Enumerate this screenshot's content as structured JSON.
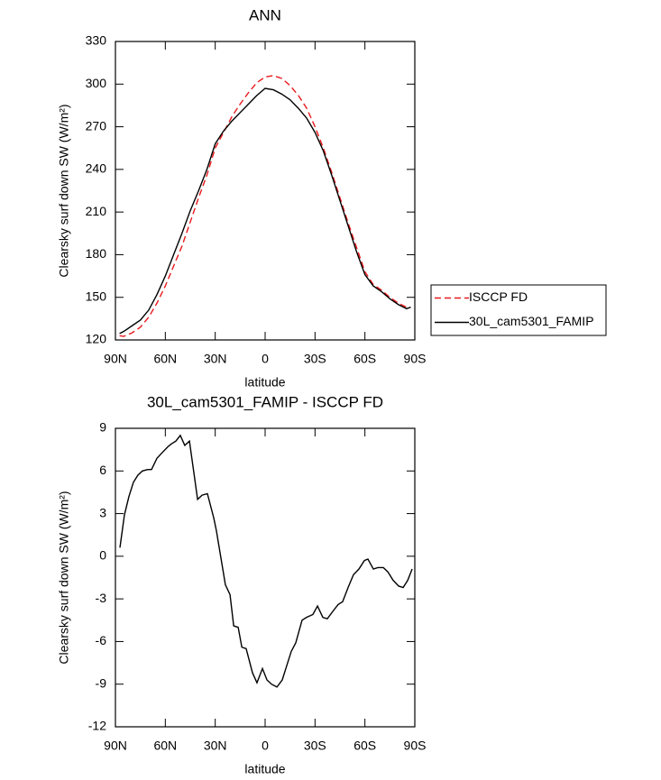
{
  "chart_data": [
    {
      "type": "line",
      "title": "ANN",
      "xlabel": "latitude",
      "ylabel": "Clearsky surf down SW (W/m²)",
      "x": [
        87.5,
        85,
        80,
        75,
        70,
        65,
        60,
        55,
        50,
        45,
        40,
        35,
        30,
        25,
        20,
        15,
        10,
        5,
        0,
        -5,
        -10,
        -15,
        -20,
        -25,
        -30,
        -35,
        -40,
        -45,
        -50,
        -55,
        -60,
        -65,
        -70,
        -75,
        -80,
        -85,
        -87.5
      ],
      "series": [
        {
          "name": "ISCCP FD",
          "color": "#e8191c",
          "dash": true,
          "values": [
            123,
            122.5,
            125,
            129,
            136,
            146,
            158,
            172,
            186,
            203,
            220,
            236,
            255,
            266,
            277,
            286,
            294,
            301,
            305,
            306,
            304,
            299,
            292,
            283,
            270,
            255,
            238,
            220,
            202,
            185,
            168,
            159,
            155,
            150,
            146,
            143,
            143
          ]
        },
        {
          "name": "30L_cam5301_FAMIP",
          "color": "#000000",
          "dash": false,
          "values": [
            124.5,
            126,
            130,
            134,
            141,
            152,
            165,
            180,
            195,
            211,
            225,
            240,
            258,
            267,
            274,
            280,
            286,
            292,
            297,
            296,
            293,
            289,
            283,
            276,
            266,
            253,
            236,
            218,
            200,
            182,
            166,
            158,
            154,
            149,
            145,
            142,
            143
          ]
        }
      ],
      "xlim": [
        90,
        -90
      ],
      "xticks": [
        {
          "value": 90,
          "label": "90N"
        },
        {
          "value": 60,
          "label": "60N"
        },
        {
          "value": 30,
          "label": "30N"
        },
        0,
        {
          "value": -30,
          "label": "30S"
        },
        {
          "value": -60,
          "label": "60S"
        },
        {
          "value": -90,
          "label": "90S"
        }
      ],
      "ylim": [
        120,
        330
      ],
      "yticks": [
        120,
        150,
        180,
        210,
        240,
        270,
        300,
        330
      ],
      "legend": "outside right"
    },
    {
      "type": "line",
      "title": "30L_cam5301_FAMIP - ISCCP FD",
      "xlabel": "latitude",
      "ylabel": "Clearsky surf down SW (W/m²)",
      "x": [
        87.3,
        84.6,
        81.9,
        79.2,
        76.5,
        73.8,
        70.6,
        68.3,
        65,
        61.8,
        58.5,
        56.4,
        53.7,
        51,
        48.3,
        45.5,
        40.6,
        37.9,
        34.7,
        30.9,
        29.3,
        23.9,
        21.1,
        18.9,
        16.2,
        14,
        11.4,
        7.6,
        4.9,
        1.6,
        -1.1,
        -3.8,
        -7.1,
        -10.3,
        -13,
        -15.7,
        -18.4,
        -22.2,
        -24.9,
        -28.7,
        -31.5,
        -34.7,
        -37.4,
        -41.2,
        -43.9,
        -46.6,
        -49.9,
        -53.1,
        -56.4,
        -59.7,
        -61.8,
        -65.1,
        -67.8,
        -71.1,
        -73.8,
        -77,
        -80.3,
        -83,
        -85.7,
        -88.4
      ],
      "values": [
        0.6,
        2.9,
        4.2,
        5.2,
        5.7,
        6,
        6.1,
        6.1,
        6.9,
        7.3,
        7.7,
        7.9,
        8.1,
        8.5,
        7.8,
        8.1,
        4,
        4.3,
        4.4,
        2.7,
        1.8,
        -2,
        -2.7,
        -4.9,
        -5,
        -6.4,
        -6.5,
        -8.2,
        -8.9,
        -7.9,
        -8.7,
        -9,
        -9.2,
        -8.7,
        -7.7,
        -6.7,
        -6.1,
        -4.5,
        -4.3,
        -4.1,
        -3.5,
        -4.3,
        -4.4,
        -3.8,
        -3.4,
        -3.2,
        -2.2,
        -1.3,
        -0.9,
        -0.3,
        -0.2,
        -0.9,
        -0.8,
        -0.8,
        -1.1,
        -1.7,
        -2.1,
        -2.2,
        -1.7,
        -0.9
      ],
      "color": "#000000",
      "xlim": [
        90,
        -90
      ],
      "xticks": [
        {
          "value": 90,
          "label": "90N"
        },
        {
          "value": 60,
          "label": "60N"
        },
        {
          "value": 30,
          "label": "30N"
        },
        0,
        {
          "value": -30,
          "label": "30S"
        },
        {
          "value": -60,
          "label": "60S"
        },
        {
          "value": -90,
          "label": "90S"
        }
      ],
      "ylim": [
        -12,
        9
      ],
      "yticks": [
        -12,
        -9,
        -6,
        -3,
        0,
        3,
        6,
        9
      ]
    }
  ]
}
